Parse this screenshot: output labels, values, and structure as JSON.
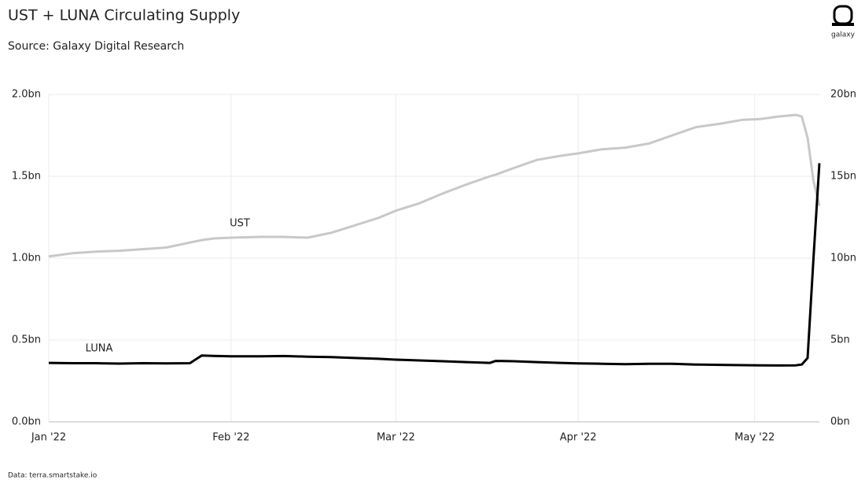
{
  "chart_data": {
    "type": "line",
    "title": "UST + LUNA Circulating Supply",
    "subtitle": "Source: Galaxy Digital Research",
    "footnote": "Data: terra.smartstake.io",
    "logo_text": "galaxy",
    "annotations": [
      "UST",
      "LUNA"
    ],
    "x": [
      0,
      4,
      8,
      12,
      16,
      20,
      24,
      26,
      28,
      31,
      36,
      40,
      44,
      48,
      52,
      56,
      59,
      63,
      67,
      71,
      75,
      76,
      79,
      83,
      87,
      90,
      94,
      98,
      102,
      106,
      110,
      114,
      118,
      121,
      124,
      127,
      128,
      129,
      130,
      131
    ],
    "xlim": [
      0,
      131
    ],
    "xticks": [
      {
        "value": 0,
        "label": "Jan '22"
      },
      {
        "value": 31,
        "label": "Feb '22"
      },
      {
        "value": 59,
        "label": "Mar '22"
      },
      {
        "value": 90,
        "label": "Apr '22"
      },
      {
        "value": 120,
        "label": "May '22"
      }
    ],
    "ylim": [
      0,
      2
    ],
    "yticks": [
      {
        "value": 0,
        "label": "0.0bn"
      },
      {
        "value": 0.5,
        "label": "0.5bn"
      },
      {
        "value": 1,
        "label": "1.0bn"
      },
      {
        "value": 1.5,
        "label": "1.5bn"
      },
      {
        "value": 2,
        "label": "2.0bn"
      }
    ],
    "y2lim": [
      0,
      20
    ],
    "y2ticks": [
      {
        "value": 0,
        "label": "0bn"
      },
      {
        "value": 5,
        "label": "5bn"
      },
      {
        "value": 10,
        "label": "10bn"
      },
      {
        "value": 15,
        "label": "15bn"
      },
      {
        "value": 20,
        "label": "20bn"
      }
    ],
    "grid": true,
    "series": [
      {
        "name": "UST",
        "color": "#c8c8c8",
        "values": [
          1.01,
          1.03,
          1.04,
          1.045,
          1.055,
          1.065,
          1.095,
          1.11,
          1.12,
          1.125,
          1.13,
          1.13,
          1.125,
          1.155,
          1.2,
          1.245,
          1.29,
          1.335,
          1.395,
          1.45,
          1.5,
          1.51,
          1.55,
          1.6,
          1.625,
          1.64,
          1.665,
          1.675,
          1.7,
          1.75,
          1.8,
          1.82,
          1.845,
          1.85,
          1.865,
          1.875,
          1.865,
          1.735,
          1.47,
          1.32
        ]
      },
      {
        "name": "LUNA",
        "color": "#000000",
        "axis": "y2",
        "values": [
          3.6,
          3.58,
          3.58,
          3.56,
          3.58,
          3.57,
          3.58,
          4.05,
          4.03,
          4.0,
          4.0,
          4.02,
          3.98,
          3.95,
          3.9,
          3.85,
          3.8,
          3.75,
          3.7,
          3.65,
          3.6,
          3.72,
          3.7,
          3.65,
          3.6,
          3.57,
          3.55,
          3.52,
          3.55,
          3.55,
          3.5,
          3.48,
          3.46,
          3.45,
          3.44,
          3.45,
          3.5,
          3.9,
          10.0,
          15.8
        ]
      }
    ]
  }
}
